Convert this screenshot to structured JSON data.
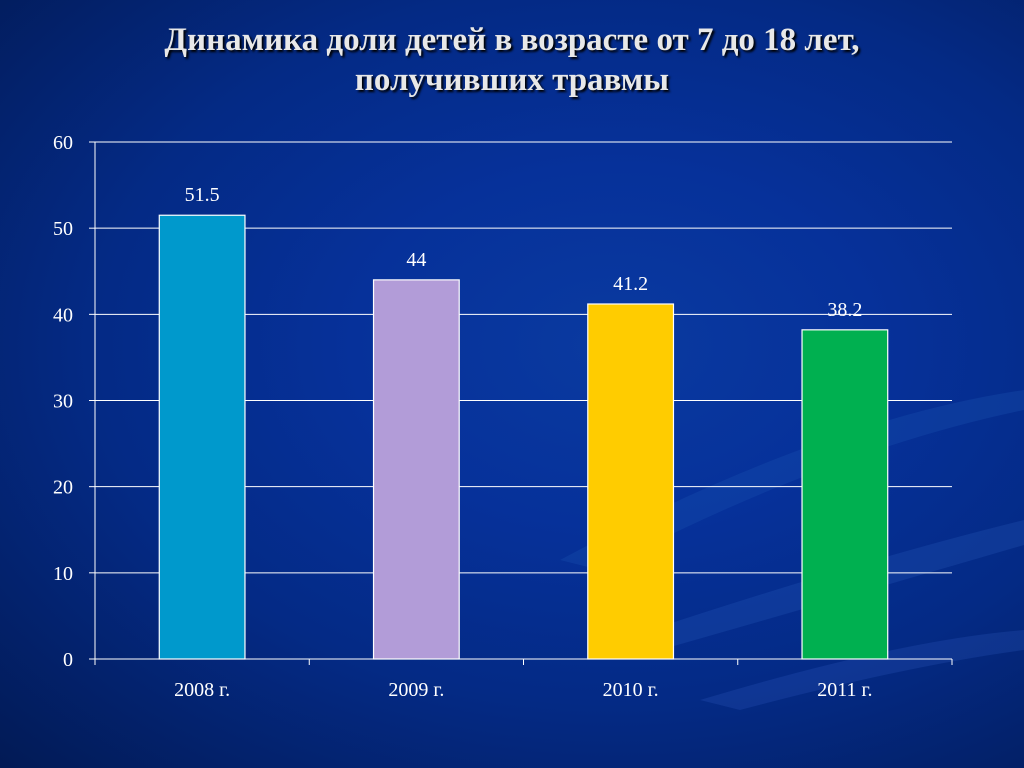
{
  "slide": {
    "title_line1": "Динамика доли детей в возрасте от 7 до 18 лет,",
    "title_line2": "получивших травмы"
  },
  "chart_data": {
    "type": "bar",
    "title": "Динамика доли детей в возрасте от 7 до 18 лет, получивших травмы",
    "xlabel": "",
    "ylabel": "",
    "categories": [
      "2008 г.",
      "2009 г.",
      "2010 г.",
      "2011 г."
    ],
    "values": [
      51.5,
      44,
      41.2,
      38.2
    ],
    "data_labels": [
      "51.5",
      "44",
      "41.2",
      "38.2"
    ],
    "colors": [
      "#0099cc",
      "#b29cd8",
      "#ffcc00",
      "#00b050"
    ],
    "ylim": [
      0,
      60
    ],
    "yticks": [
      0,
      10,
      20,
      30,
      40,
      50,
      60
    ],
    "grid": true,
    "legend": "none"
  }
}
